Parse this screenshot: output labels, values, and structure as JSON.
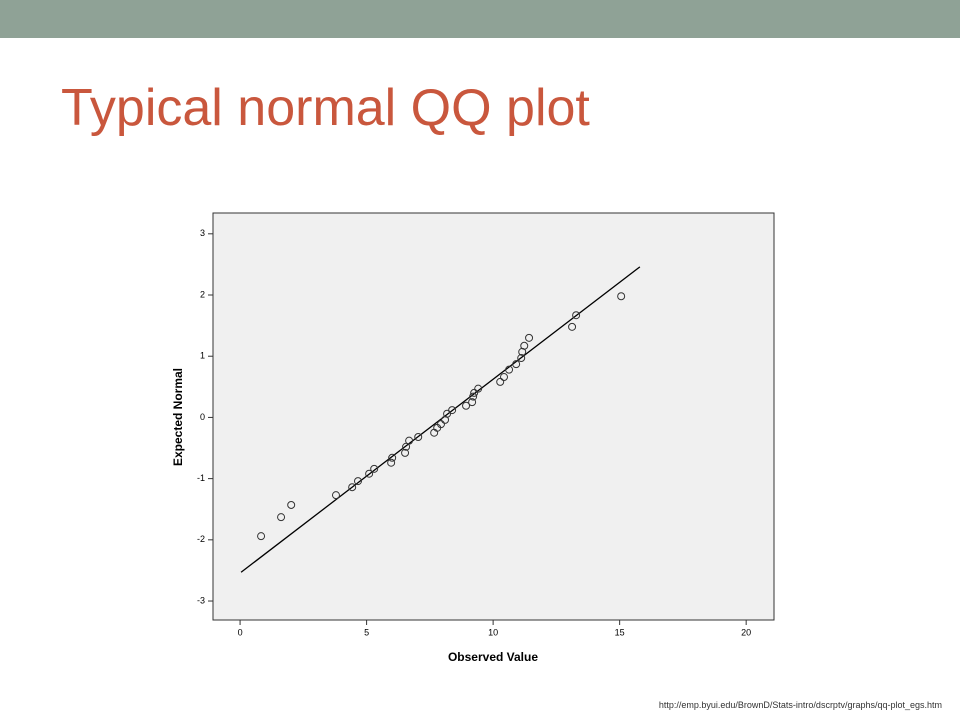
{
  "header": {
    "title": "Typical normal QQ plot"
  },
  "chart_data": {
    "type": "scatter",
    "xlabel": "Observed Value",
    "ylabel": "Expected Normal",
    "x": [
      0.83,
      1.62,
      2.02,
      3.79,
      4.43,
      4.66,
      5.1,
      5.3,
      5.97,
      6.01,
      6.52,
      6.56,
      6.68,
      7.04,
      7.67,
      7.79,
      7.94,
      8.1,
      8.18,
      8.38,
      8.93,
      9.17,
      9.21,
      9.25,
      9.41,
      10.28,
      10.43,
      10.63,
      10.91,
      11.11,
      11.15,
      11.23,
      11.42,
      13.12,
      13.28,
      15.06
    ],
    "y": [
      -1.94,
      -1.63,
      -1.43,
      -1.27,
      -1.14,
      -1.04,
      -0.92,
      -0.84,
      -0.74,
      -0.66,
      -0.58,
      -0.48,
      -0.38,
      -0.32,
      -0.25,
      -0.17,
      -0.11,
      -0.04,
      0.06,
      0.12,
      0.19,
      0.25,
      0.34,
      0.4,
      0.47,
      0.58,
      0.66,
      0.78,
      0.87,
      0.97,
      1.07,
      1.17,
      1.3,
      1.48,
      1.67,
      1.98
    ],
    "reference_line": {
      "x": [
        0.04,
        15.8
      ],
      "y": [
        -2.53,
        2.46
      ]
    },
    "xlim": [
      -1.07,
      21.1
    ],
    "ylim": [
      -3.31,
      3.34
    ],
    "xticks": [
      0,
      5,
      10,
      15,
      20
    ],
    "yticks": [
      -3,
      -2,
      -1,
      0,
      1,
      2,
      3
    ],
    "marker_color": "#333333",
    "line_color": "#000000",
    "plot_background": "#f0f0f0"
  },
  "footer": {
    "source": "http://emp.byui.edu/BrownD/Stats-intro/dscrptv/graphs/qq-plot_egs.htm"
  }
}
